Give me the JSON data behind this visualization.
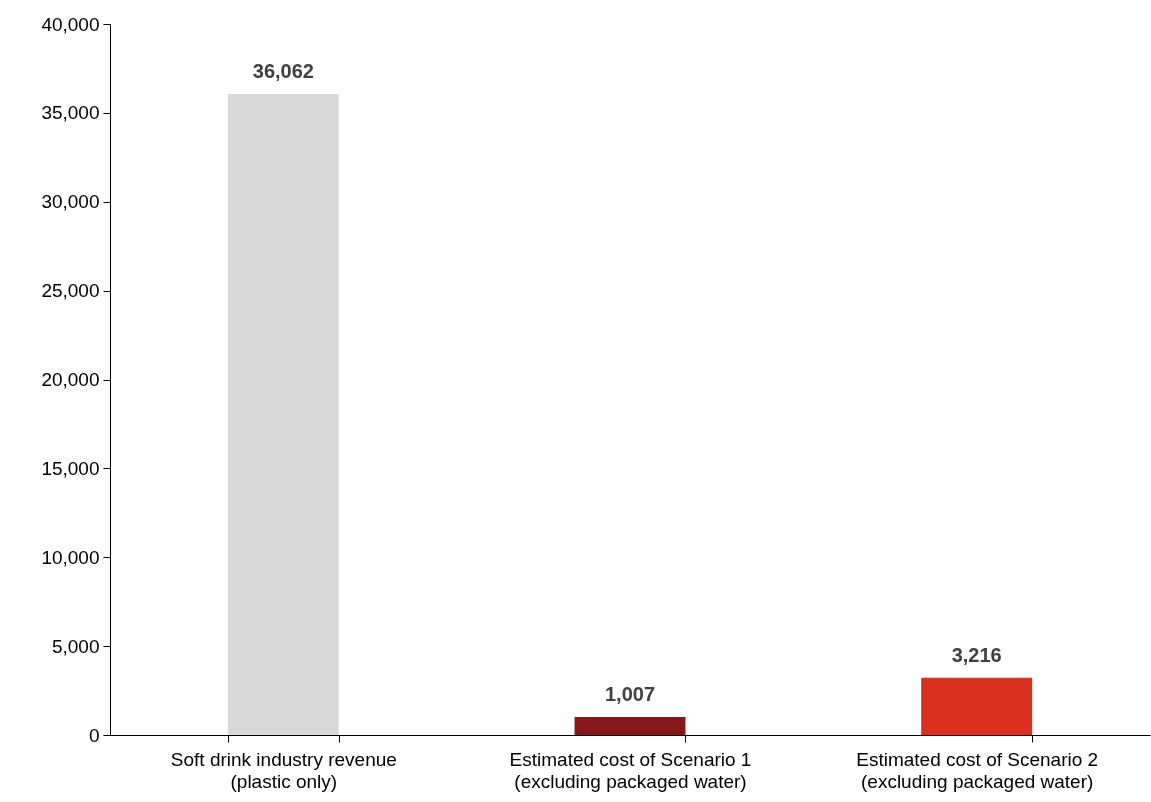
{
  "chart_data": {
    "type": "bar",
    "categories": [
      "Soft drink industry revenue (plastic only)",
      "Estimated cost of Scenario 1 (excluding packaged water)",
      "Estimated cost of Scenario 2 (excluding packaged water)"
    ],
    "values": [
      36062,
      1007,
      3216
    ],
    "colors": [
      "#d9d9d9",
      "#85191a",
      "#d9301f"
    ],
    "value_labels": [
      "36,062",
      "1,007",
      "3,216"
    ],
    "ylim": [
      0,
      40000
    ],
    "yticks": [
      0,
      {
        "value": 5000,
        "label": "5,000"
      },
      {
        "value": 10000,
        "label": "10,000"
      },
      {
        "value": 15000,
        "label": "15,000"
      },
      {
        "value": 20000,
        "label": "20,000"
      },
      {
        "value": 25000,
        "label": "25,000"
      },
      {
        "value": 30000,
        "label": "30,000"
      },
      {
        "value": 35000,
        "label": "35,000"
      },
      {
        "value": 40000,
        "label": "40,000"
      }
    ],
    "grid": false,
    "legend": false
  }
}
